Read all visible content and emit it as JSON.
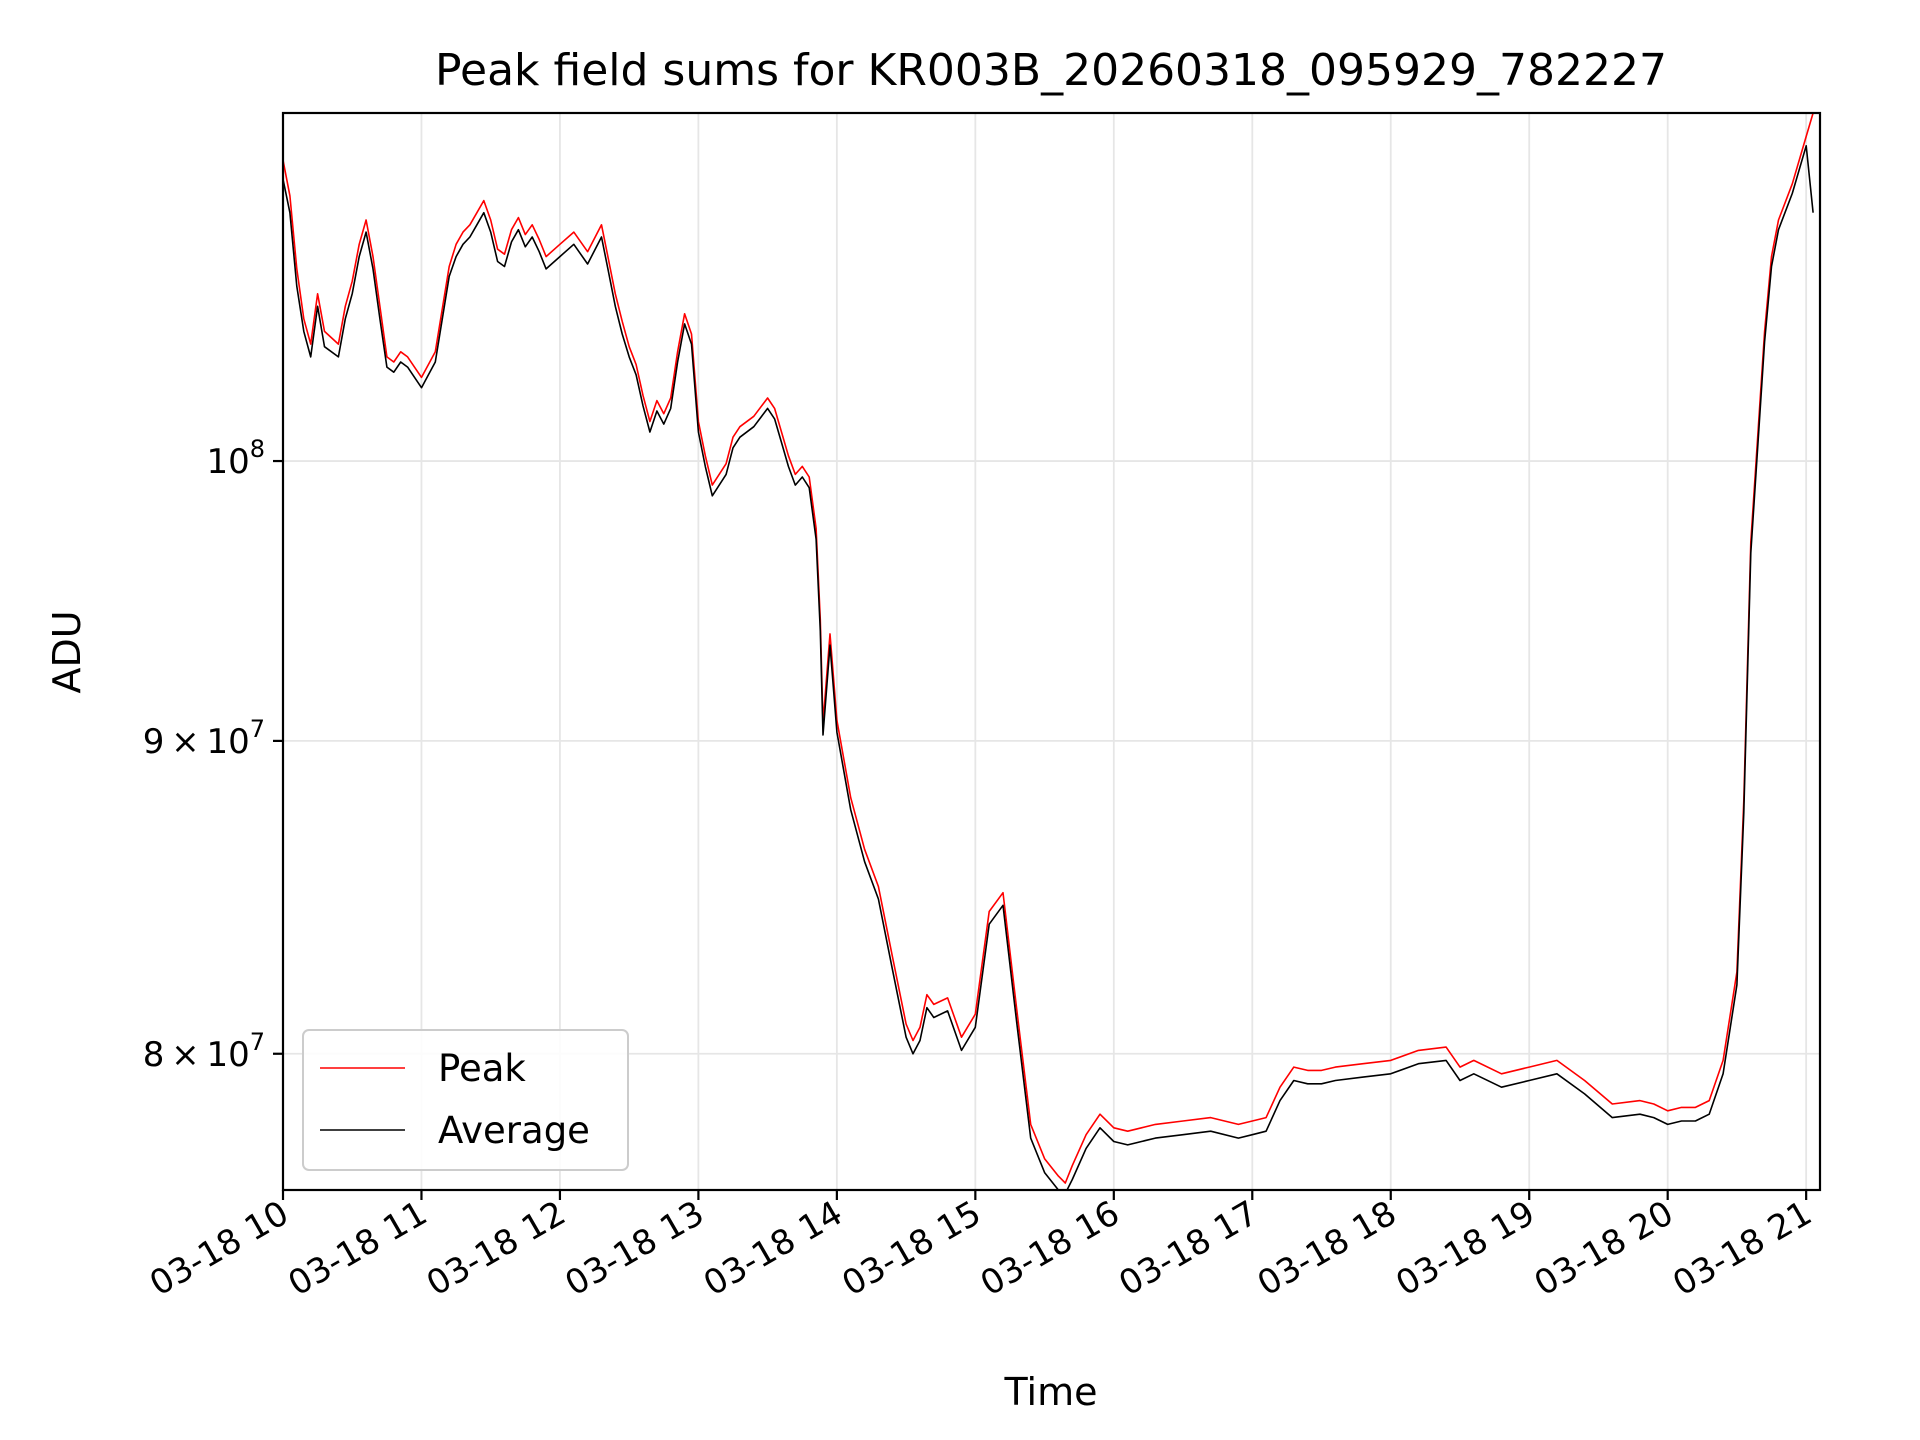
{
  "chart_data": {
    "type": "line",
    "title": "Peak field sums for KR003B_20260318_095929_782227",
    "xlabel": "Time",
    "ylabel": "ADU",
    "y_scale": "log",
    "grid": true,
    "legend_position": "lower-left",
    "x_unit": "hours since 03-18 10:00",
    "xlim": [
      0,
      11.1
    ],
    "ylim": [
      76000000,
      114000000
    ],
    "x_ticks": [
      {
        "value": 0,
        "label": "03-18 10"
      },
      {
        "value": 1,
        "label": "03-18 11"
      },
      {
        "value": 2,
        "label": "03-18 12"
      },
      {
        "value": 3,
        "label": "03-18 13"
      },
      {
        "value": 4,
        "label": "03-18 14"
      },
      {
        "value": 5,
        "label": "03-18 15"
      },
      {
        "value": 6,
        "label": "03-18 16"
      },
      {
        "value": 7,
        "label": "03-18 17"
      },
      {
        "value": 8,
        "label": "03-18 18"
      },
      {
        "value": 9,
        "label": "03-18 19"
      },
      {
        "value": 10,
        "label": "03-18 20"
      },
      {
        "value": 11,
        "label": "03-18 21"
      }
    ],
    "y_ticks": [
      {
        "value": 80000000,
        "mantissa": "8",
        "base": "10",
        "exp": "7",
        "times": "×"
      },
      {
        "value": 90000000,
        "mantissa": "9",
        "base": "10",
        "exp": "7",
        "times": "×"
      },
      {
        "value": 100000000,
        "mantissa": "",
        "base": "10",
        "exp": "8",
        "times": ""
      }
    ],
    "x": [
      0.0,
      0.05,
      0.1,
      0.15,
      0.2,
      0.25,
      0.3,
      0.4,
      0.45,
      0.5,
      0.55,
      0.6,
      0.65,
      0.7,
      0.75,
      0.8,
      0.85,
      0.9,
      1.0,
      1.1,
      1.2,
      1.25,
      1.3,
      1.35,
      1.4,
      1.45,
      1.5,
      1.55,
      1.6,
      1.65,
      1.7,
      1.75,
      1.8,
      1.85,
      1.9,
      2.0,
      2.1,
      2.2,
      2.3,
      2.35,
      2.4,
      2.45,
      2.5,
      2.55,
      2.6,
      2.65,
      2.7,
      2.75,
      2.8,
      2.85,
      2.9,
      2.95,
      3.0,
      3.05,
      3.1,
      3.2,
      3.25,
      3.3,
      3.4,
      3.5,
      3.55,
      3.6,
      3.65,
      3.7,
      3.75,
      3.8,
      3.85,
      3.88,
      3.9,
      3.95,
      4.0,
      4.1,
      4.2,
      4.3,
      4.4,
      4.5,
      4.55,
      4.6,
      4.65,
      4.7,
      4.8,
      4.9,
      5.0,
      5.1,
      5.2,
      5.3,
      5.4,
      5.5,
      5.6,
      5.65,
      5.7,
      5.8,
      5.9,
      6.0,
      6.1,
      6.2,
      6.3,
      6.5,
      6.7,
      6.9,
      7.0,
      7.1,
      7.2,
      7.3,
      7.4,
      7.5,
      7.6,
      7.8,
      8.0,
      8.2,
      8.4,
      8.5,
      8.6,
      8.8,
      9.0,
      9.2,
      9.4,
      9.6,
      9.8,
      9.9,
      10.0,
      10.1,
      10.2,
      10.3,
      10.4,
      10.5,
      10.55,
      10.6,
      10.7,
      10.75,
      10.8,
      10.9,
      11.0,
      11.05
    ],
    "series": [
      {
        "name": "Peak",
        "color": "#ff0000",
        "values": [
          112000000,
          110500000,
          107500000,
          105500000,
          104500000,
          106500000,
          105000000,
          104500000,
          106000000,
          107000000,
          108500000,
          109500000,
          108000000,
          106000000,
          104000000,
          103800000,
          104200000,
          104000000,
          103200000,
          104200000,
          107600000,
          108500000,
          109000000,
          109300000,
          109800000,
          110300000,
          109500000,
          108300000,
          108100000,
          109100000,
          109600000,
          108900000,
          109300000,
          108700000,
          108000000,
          108500000,
          109000000,
          108200000,
          109300000,
          107900000,
          106500000,
          105400000,
          104400000,
          103700000,
          102500000,
          101500000,
          102300000,
          101800000,
          102400000,
          104200000,
          105700000,
          104900000,
          101500000,
          100200000,
          99100000,
          99900000,
          100900000,
          101300000,
          101700000,
          102400000,
          102000000,
          101100000,
          100200000,
          99500000,
          99800000,
          99400000,
          97500000,
          94200000,
          90600000,
          93700000,
          90700000,
          88100000,
          86400000,
          85200000,
          83000000,
          80900000,
          80400000,
          80800000,
          81800000,
          81500000,
          81700000,
          80500000,
          81200000,
          84400000,
          85000000,
          81300000,
          77900000,
          76900000,
          76400000,
          76200000,
          76700000,
          77600000,
          78200000,
          77800000,
          77700000,
          77800000,
          77900000,
          78000000,
          78100000,
          77900000,
          78000000,
          78100000,
          79000000,
          79600000,
          79500000,
          79500000,
          79600000,
          79700000,
          79800000,
          80100000,
          80200000,
          79600000,
          79800000,
          79400000,
          79600000,
          79800000,
          79200000,
          78500000,
          78600000,
          78500000,
          78300000,
          78400000,
          78400000,
          78600000,
          79800000,
          82500000,
          88000000,
          97000000,
          105000000,
          108000000,
          109500000,
          111000000,
          113000000,
          114000000
        ]
      },
      {
        "name": "Average",
        "color": "#000000",
        "values": [
          111200000,
          109800000,
          106800000,
          105000000,
          104000000,
          106000000,
          104400000,
          104000000,
          105500000,
          106500000,
          108000000,
          109000000,
          107500000,
          105500000,
          103600000,
          103400000,
          103800000,
          103600000,
          102800000,
          103800000,
          107200000,
          108000000,
          108500000,
          108800000,
          109300000,
          109800000,
          109000000,
          107800000,
          107600000,
          108600000,
          109100000,
          108400000,
          108800000,
          108200000,
          107500000,
          108000000,
          108500000,
          107700000,
          108800000,
          107400000,
          106000000,
          104900000,
          104000000,
          103300000,
          102100000,
          101100000,
          101900000,
          101400000,
          102000000,
          103800000,
          105300000,
          104500000,
          101100000,
          99800000,
          98700000,
          99500000,
          100500000,
          100900000,
          101300000,
          102000000,
          101600000,
          100700000,
          99800000,
          99100000,
          99400000,
          99000000,
          97100000,
          93800000,
          90200000,
          93300000,
          90300000,
          87700000,
          86000000,
          84800000,
          82600000,
          80500000,
          80000000,
          80400000,
          81400000,
          81100000,
          81300000,
          80100000,
          80800000,
          84000000,
          84600000,
          80900000,
          77500000,
          76500000,
          76000000,
          75900000,
          76300000,
          77200000,
          77800000,
          77400000,
          77300000,
          77400000,
          77500000,
          77600000,
          77700000,
          77500000,
          77600000,
          77700000,
          78600000,
          79200000,
          79100000,
          79100000,
          79200000,
          79300000,
          79400000,
          79700000,
          79800000,
          79200000,
          79400000,
          79000000,
          79200000,
          79400000,
          78800000,
          78100000,
          78200000,
          78100000,
          77900000,
          78000000,
          78000000,
          78200000,
          79400000,
          82100000,
          87600000,
          96600000,
          104600000,
          107600000,
          109100000,
          110600000,
          112600000,
          109800000
        ]
      }
    ]
  }
}
